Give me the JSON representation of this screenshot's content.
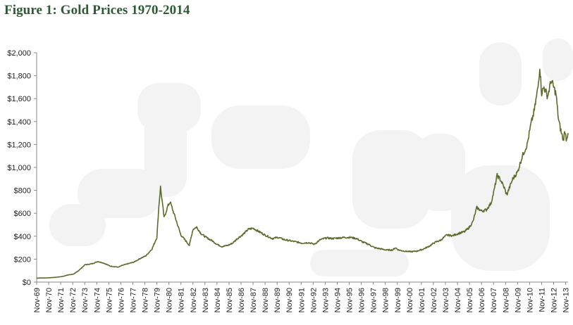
{
  "title": "Figure 1: Gold Prices 1970-2014",
  "colors": {
    "line": "#5b6b2a",
    "title": "#2e5a33",
    "watermark": "#f2f2f2"
  },
  "chart_data": {
    "type": "line",
    "title": "Figure 1: Gold Prices 1970-2014",
    "xlabel": "",
    "ylabel": "",
    "ylim": [
      0,
      2000
    ],
    "grid": false,
    "legend": "none",
    "y_tick_labels": [
      "$0",
      "$200",
      "$400",
      "$600",
      "$800",
      "$1,000",
      "$1,200",
      "$1,400",
      "$1,600",
      "$1,800",
      "$2,000"
    ],
    "x_tick_labels": [
      "Nov-69",
      "Nov-70",
      "Nov-71",
      "Nov-72",
      "Nov-73",
      "Nov-74",
      "Nov-75",
      "Nov-76",
      "Nov-77",
      "Nov-78",
      "Nov-79",
      "Nov-80",
      "Nov-81",
      "Nov-82",
      "Nov-83",
      "Nov-84",
      "Nov-85",
      "Nov-86",
      "Nov-87",
      "Nov-88",
      "Nov-89",
      "Nov-90",
      "Nov-91",
      "Nov-92",
      "Nov-93",
      "Nov-94",
      "Nov-95",
      "Nov-96",
      "Nov-97",
      "Nov-98",
      "Nov-99",
      "Nov-00",
      "Nov-01",
      "Nov-02",
      "Nov-03",
      "Nov-04",
      "Nov-05",
      "Nov-06",
      "Nov-07",
      "Nov-08",
      "Nov-09",
      "Nov-10",
      "Nov-11",
      "Nov-12",
      "Nov-13"
    ],
    "series": [
      {
        "x": [
          1969.9,
          1970.5,
          1971.0,
          1971.5,
          1972.0,
          1972.5,
          1973.0,
          1973.5,
          1973.9,
          1974.5,
          1975.0,
          1975.5,
          1976.0,
          1976.7,
          1977.0,
          1977.5,
          1978.0,
          1978.5,
          1979.0,
          1979.5,
          1979.9,
          1980.05,
          1980.2,
          1980.5,
          1980.8,
          1981.0,
          1981.5,
          1981.9,
          1982.3,
          1982.6,
          1982.9,
          1983.2,
          1983.6,
          1984.0,
          1984.5,
          1984.9,
          1985.3,
          1985.8,
          1986.2,
          1986.6,
          1987.0,
          1987.5,
          1987.9,
          1988.4,
          1988.9,
          1989.5,
          1990.0,
          1990.5,
          1991.0,
          1991.5,
          1992.0,
          1992.5,
          1993.0,
          1993.5,
          1994.0,
          1994.5,
          1995.0,
          1995.5,
          1996.0,
          1996.5,
          1997.0,
          1997.5,
          1998.0,
          1998.5,
          1999.0,
          1999.5,
          1999.75,
          2000.0,
          2000.5,
          2001.0,
          2001.5,
          2002.0,
          2002.5,
          2003.0,
          2003.5,
          2004.0,
          2004.5,
          2005.0,
          2005.5,
          2005.9,
          2006.2,
          2006.5,
          2006.9,
          2007.3,
          2007.7,
          2007.95,
          2008.2,
          2008.5,
          2008.8,
          2009.0,
          2009.5,
          2009.9,
          2010.3,
          2010.7,
          2011.0,
          2011.3,
          2011.6,
          2011.75,
          2011.9,
          2012.1,
          2012.4,
          2012.7,
          2012.9,
          2013.1,
          2013.3,
          2013.5,
          2013.7,
          2013.85,
          2013.95,
          2014.1
        ],
        "y": [
          35,
          36,
          38,
          42,
          48,
          62,
          70,
          110,
          150,
          160,
          180,
          165,
          140,
          130,
          145,
          160,
          175,
          205,
          230,
          290,
          390,
          640,
          830,
          560,
          660,
          700,
          540,
          410,
          360,
          320,
          460,
          480,
          420,
          390,
          360,
          330,
          310,
          320,
          340,
          380,
          410,
          460,
          470,
          440,
          410,
          380,
          390,
          370,
          360,
          350,
          340,
          345,
          330,
          370,
          385,
          380,
          385,
          390,
          390,
          380,
          350,
          330,
          300,
          290,
          280,
          280,
          300,
          280,
          270,
          265,
          270,
          285,
          310,
          345,
          365,
          410,
          405,
          425,
          440,
          480,
          530,
          650,
          620,
          630,
          690,
          800,
          930,
          890,
          820,
          760,
          900,
          960,
          1100,
          1200,
          1370,
          1500,
          1700,
          1880,
          1650,
          1700,
          1620,
          1760,
          1700,
          1640,
          1420,
          1320,
          1240,
          1320,
          1250,
          1300
        ]
      }
    ]
  }
}
